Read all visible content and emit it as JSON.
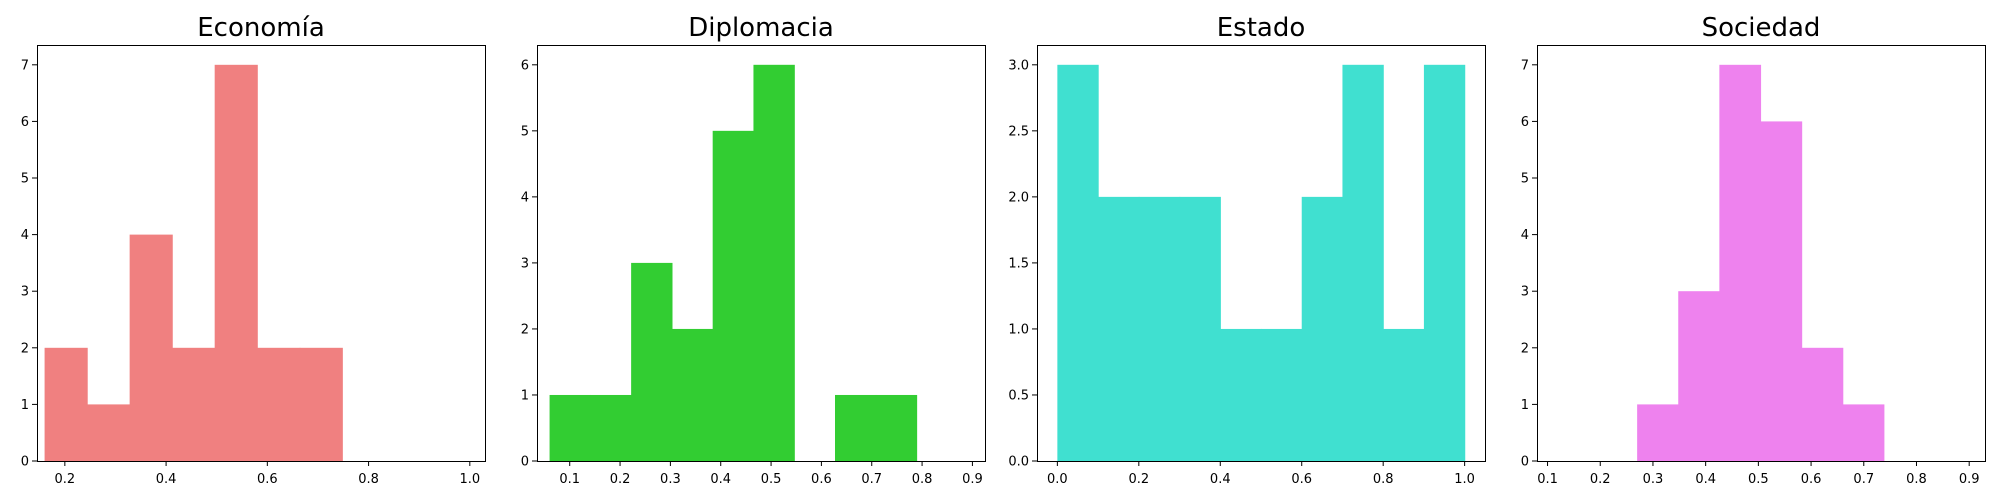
{
  "chart_data": [
    {
      "type": "histogram",
      "title": "Economía",
      "color": "#f08080",
      "xlim": [
        0.145,
        1.03
      ],
      "ylim": [
        0,
        7.35
      ],
      "xticks": [
        0.2,
        0.4,
        0.6,
        0.8,
        1.0
      ],
      "xtick_labels": [
        "0.2",
        "0.4",
        "0.6",
        "0.8",
        "1.0"
      ],
      "yticks": [
        0,
        1,
        2,
        3,
        4,
        5,
        6,
        7
      ],
      "ytick_labels": [
        "0",
        "1",
        "2",
        "3",
        "4",
        "5",
        "6",
        "7"
      ],
      "bins": [
        {
          "x0": 0.16,
          "x1": 0.244,
          "count": 2
        },
        {
          "x0": 0.244,
          "x1": 0.328,
          "count": 1
        },
        {
          "x0": 0.328,
          "x1": 0.412,
          "count": 4
        },
        {
          "x0": 0.412,
          "x1": 0.496,
          "count": 2
        },
        {
          "x0": 0.496,
          "x1": 0.58,
          "count": 7
        },
        {
          "x0": 0.58,
          "x1": 0.664,
          "count": 2
        },
        {
          "x0": 0.664,
          "x1": 0.748,
          "count": 2
        }
      ]
    },
    {
      "type": "histogram",
      "title": "Diplomacia",
      "color": "#32cd32",
      "xlim": [
        0.035,
        0.925
      ],
      "ylim": [
        0,
        6.3
      ],
      "xticks": [
        0.1,
        0.2,
        0.3,
        0.4,
        0.5,
        0.6,
        0.7,
        0.8,
        0.9
      ],
      "xtick_labels": [
        "0.1",
        "0.2",
        "0.3",
        "0.4",
        "0.5",
        "0.6",
        "0.7",
        "0.8",
        "0.9"
      ],
      "yticks": [
        0,
        1,
        2,
        3,
        4,
        5,
        6
      ],
      "ytick_labels": [
        "0",
        "1",
        "2",
        "3",
        "4",
        "5",
        "6"
      ],
      "bins": [
        {
          "x0": 0.06,
          "x1": 0.141,
          "count": 1
        },
        {
          "x0": 0.141,
          "x1": 0.222,
          "count": 1
        },
        {
          "x0": 0.222,
          "x1": 0.303,
          "count": 3
        },
        {
          "x0": 0.303,
          "x1": 0.384,
          "count": 2
        },
        {
          "x0": 0.384,
          "x1": 0.465,
          "count": 5
        },
        {
          "x0": 0.465,
          "x1": 0.546,
          "count": 6
        },
        {
          "x0": 0.546,
          "x1": 0.627,
          "count": 0
        },
        {
          "x0": 0.627,
          "x1": 0.708,
          "count": 1
        },
        {
          "x0": 0.708,
          "x1": 0.789,
          "count": 1
        }
      ]
    },
    {
      "type": "histogram",
      "title": "Estado",
      "color": "#40e0d0",
      "xlim": [
        -0.05,
        1.05
      ],
      "ylim": [
        0,
        3.15
      ],
      "xticks": [
        0.0,
        0.2,
        0.4,
        0.6,
        0.8,
        1.0
      ],
      "xtick_labels": [
        "0.0",
        "0.2",
        "0.4",
        "0.6",
        "0.8",
        "1.0"
      ],
      "yticks": [
        0.0,
        0.5,
        1.0,
        1.5,
        2.0,
        2.5,
        3.0
      ],
      "ytick_labels": [
        "0.0",
        "0.5",
        "1.0",
        "1.5",
        "2.0",
        "2.5",
        "3.0"
      ],
      "bins": [
        {
          "x0": 0.0,
          "x1": 0.1,
          "count": 3
        },
        {
          "x0": 0.1,
          "x1": 0.2,
          "count": 2
        },
        {
          "x0": 0.2,
          "x1": 0.3,
          "count": 2
        },
        {
          "x0": 0.3,
          "x1": 0.4,
          "count": 2
        },
        {
          "x0": 0.4,
          "x1": 0.5,
          "count": 1
        },
        {
          "x0": 0.5,
          "x1": 0.6,
          "count": 1
        },
        {
          "x0": 0.6,
          "x1": 0.7,
          "count": 2
        },
        {
          "x0": 0.7,
          "x1": 0.8,
          "count": 3
        },
        {
          "x0": 0.8,
          "x1": 0.9,
          "count": 1
        },
        {
          "x0": 0.9,
          "x1": 1.0,
          "count": 3
        }
      ]
    },
    {
      "type": "histogram",
      "title": "Sociedad",
      "color": "#ee82ee",
      "xlim": [
        0.08,
        0.93
      ],
      "ylim": [
        0,
        7.35
      ],
      "xticks": [
        0.1,
        0.2,
        0.3,
        0.4,
        0.5,
        0.6,
        0.7,
        0.8,
        0.9
      ],
      "xtick_labels": [
        "0.1",
        "0.2",
        "0.3",
        "0.4",
        "0.5",
        "0.6",
        "0.7",
        "0.8",
        "0.9"
      ],
      "yticks": [
        0,
        1,
        2,
        3,
        4,
        5,
        6,
        7
      ],
      "ytick_labels": [
        "0",
        "1",
        "2",
        "3",
        "4",
        "5",
        "6",
        "7"
      ],
      "bins": [
        {
          "x0": 0.27,
          "x1": 0.348,
          "count": 1
        },
        {
          "x0": 0.348,
          "x1": 0.426,
          "count": 3
        },
        {
          "x0": 0.426,
          "x1": 0.504,
          "count": 7
        },
        {
          "x0": 0.504,
          "x1": 0.582,
          "count": 6
        },
        {
          "x0": 0.582,
          "x1": 0.66,
          "count": 2
        },
        {
          "x0": 0.66,
          "x1": 0.738,
          "count": 1
        }
      ]
    }
  ]
}
